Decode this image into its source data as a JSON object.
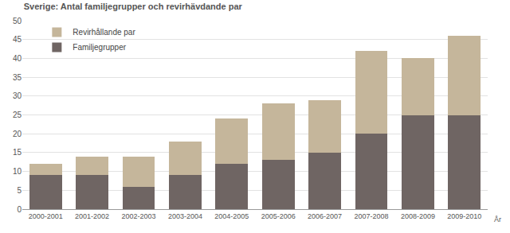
{
  "chart_data": {
    "type": "bar",
    "title": "Sverige: Antal familjegrupper och revirhävdande par",
    "x_label": "År",
    "stacked": true,
    "grid": true,
    "legend": "top-left",
    "categories": [
      "2000-2001",
      "2001-2002",
      "2002-2003",
      "2003-2004",
      "2004-2005",
      "2005-2006",
      "2006-2007",
      "2007-2008",
      "2008-2009",
      "2009-2010"
    ],
    "series": [
      {
        "name": "Familjegrupper",
        "color": "#6f6563",
        "values": [
          9,
          9,
          6,
          9,
          12,
          13,
          15,
          20,
          25,
          25
        ]
      },
      {
        "name": "Revirhållande par",
        "color": "#c5b69b",
        "values": [
          3,
          5,
          8,
          9,
          12,
          15,
          14,
          22,
          15,
          21
        ]
      }
    ],
    "ylim": [
      0,
      50
    ],
    "yticks": [
      0,
      5,
      10,
      15,
      20,
      25,
      30,
      35,
      40,
      45,
      50
    ]
  }
}
